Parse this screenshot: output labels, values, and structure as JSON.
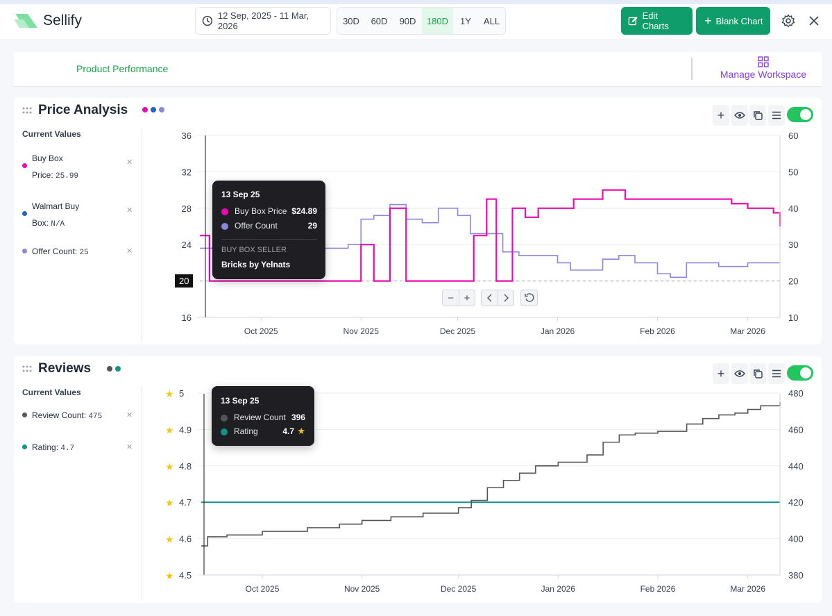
{
  "app": {
    "brand": "Sellify"
  },
  "header": {
    "date_range": "12 Sep, 2025 - 11 Mar, 2026",
    "ranges": [
      "30D",
      "60D",
      "90D",
      "180D",
      "1Y",
      "ALL"
    ],
    "active_range": "180D",
    "edit_charts": "Edit Charts",
    "blank_chart": "Blank Chart"
  },
  "workspace": {
    "title": "Product Performance",
    "manage": "Manage Workspace"
  },
  "current_values_label": "Current Values",
  "price": {
    "title": "Price Analysis",
    "title_dots": [
      "#ec0bb3",
      "#2563c8",
      "#8b87dd"
    ],
    "items": [
      {
        "label": "Buy Box",
        "label2": "Price:",
        "value": "25.99",
        "color": "#ec0bb3"
      },
      {
        "label": "Walmart Buy",
        "label2": "Box:",
        "value": "N/A",
        "color": "#2563c8"
      },
      {
        "label": "Offer Count:",
        "value": "25",
        "color": "#8b87dd"
      }
    ],
    "tooltip": {
      "date": "13 Sep 25",
      "row1_label": "Buy Box Price",
      "row1_value": "$24.89",
      "row2_label": "Offer Count",
      "row2_value": "29",
      "seller_heading": "BUY BOX SELLER",
      "seller_name": "Bricks by Yelnats"
    },
    "crosshair_value": "20"
  },
  "reviews": {
    "title": "Reviews",
    "title_dots": [
      "#555555",
      "#0f9488"
    ],
    "items": [
      {
        "label": "Review Count:",
        "value": "475",
        "color": "#555555"
      },
      {
        "label": "Rating:",
        "value": "4.7",
        "color": "#0f9488"
      }
    ],
    "tooltip": {
      "date": "13 Sep 25",
      "row1_label": "Review Count",
      "row1_value": "396",
      "row2_label": "Rating",
      "row2_value": "4.7"
    }
  },
  "chart_data": [
    {
      "type": "line",
      "title": "Price Analysis",
      "x_tick_labels": [
        "Oct 2025",
        "Nov 2025",
        "Dec 2025",
        "Jan 2026",
        "Feb 2026",
        "Mar 2026"
      ],
      "y_left": {
        "ticks": [
          "36",
          "32",
          "28",
          "24",
          "20",
          "16"
        ],
        "range": [
          16,
          36
        ]
      },
      "y_right": {
        "ticks": [
          "60",
          "50",
          "40",
          "30",
          "20",
          "10"
        ],
        "range": [
          10,
          60
        ]
      },
      "series": [
        {
          "name": "Buy Box Price",
          "color": "#ec0bb3",
          "axis": "left",
          "x": [
            "2025-09-12",
            "2025-09-15",
            "2025-09-20",
            "2025-10-01",
            "2025-10-15",
            "2025-10-28",
            "2025-11-01",
            "2025-11-05",
            "2025-11-10",
            "2025-11-15",
            "2025-11-20",
            "2025-12-01",
            "2025-12-06",
            "2025-12-10",
            "2025-12-13",
            "2025-12-18",
            "2025-12-22",
            "2025-12-26",
            "2025-12-31",
            "2026-01-06",
            "2026-01-15",
            "2026-01-22",
            "2026-02-01",
            "2026-02-10",
            "2026-02-18",
            "2026-02-24",
            "2026-03-01",
            "2026-03-05",
            "2026-03-09",
            "2026-03-11"
          ],
          "y": [
            25,
            20,
            20,
            20,
            20,
            20,
            24,
            20,
            28,
            20,
            20,
            20,
            25,
            29,
            20,
            28,
            27,
            28,
            28,
            29,
            30,
            29,
            29,
            29,
            29,
            28.5,
            28,
            28,
            27.5,
            26
          ]
        },
        {
          "name": "Offer Count",
          "color": "#8b87dd",
          "axis": "right",
          "x": [
            "2025-09-12",
            "2025-09-20",
            "2025-10-01",
            "2025-10-15",
            "2025-10-28",
            "2025-11-01",
            "2025-11-05",
            "2025-11-10",
            "2025-11-15",
            "2025-11-20",
            "2025-11-25",
            "2025-12-01",
            "2025-12-05",
            "2025-12-10",
            "2025-12-15",
            "2025-12-20",
            "2025-12-25",
            "2026-01-01",
            "2026-01-05",
            "2026-01-10",
            "2026-01-15",
            "2026-01-20",
            "2026-01-25",
            "2026-02-01",
            "2026-02-05",
            "2026-02-10",
            "2026-02-15",
            "2026-02-20",
            "2026-02-25",
            "2026-03-01",
            "2026-03-05",
            "2026-03-11"
          ],
          "y": [
            29,
            29,
            29,
            29,
            30,
            37,
            38,
            41,
            37,
            36,
            40,
            38,
            33,
            33,
            28,
            27,
            27,
            25,
            23,
            23,
            26,
            27,
            25,
            22,
            21,
            25,
            25,
            24,
            24,
            25,
            25,
            25
          ]
        }
      ],
      "reference_line": {
        "axis": "left",
        "value": 20
      }
    },
    {
      "type": "line",
      "title": "Reviews",
      "x_tick_labels": [
        "Oct 2025",
        "Nov 2025",
        "Dec 2025",
        "Jan 2026",
        "Feb 2026",
        "Mar 2026"
      ],
      "y_left": {
        "ticks": [
          "5",
          "4.9",
          "4.8",
          "4.7",
          "4.6",
          "4.5"
        ],
        "range": [
          4.5,
          5
        ]
      },
      "y_right": {
        "ticks": [
          "480",
          "460",
          "440",
          "420",
          "400",
          "380"
        ],
        "range": [
          380,
          480
        ]
      },
      "series": [
        {
          "name": "Review Count",
          "color": "#555555",
          "axis": "right",
          "x": [
            "2025-09-12",
            "2025-09-13",
            "2025-09-14",
            "2025-09-20",
            "2025-10-01",
            "2025-10-15",
            "2025-10-25",
            "2025-11-01",
            "2025-11-10",
            "2025-11-20",
            "2025-12-01",
            "2025-12-05",
            "2025-12-10",
            "2025-12-15",
            "2025-12-20",
            "2025-12-25",
            "2026-01-01",
            "2026-01-10",
            "2026-01-15",
            "2026-01-20",
            "2026-01-25",
            "2026-02-01",
            "2026-02-10",
            "2026-02-15",
            "2026-02-20",
            "2026-02-25",
            "2026-03-01",
            "2026-03-05",
            "2026-03-11"
          ],
          "y": [
            396,
            396,
            401,
            402,
            404,
            406,
            408,
            410,
            412,
            414,
            417,
            421,
            428,
            432,
            436,
            440,
            442,
            446,
            453,
            457,
            458,
            459,
            463,
            466,
            468,
            469,
            471,
            473,
            475
          ]
        },
        {
          "name": "Rating",
          "color": "#0f9488",
          "axis": "left",
          "x": [
            "2025-09-12",
            "2026-03-11"
          ],
          "y": [
            4.7,
            4.7
          ]
        }
      ]
    }
  ]
}
